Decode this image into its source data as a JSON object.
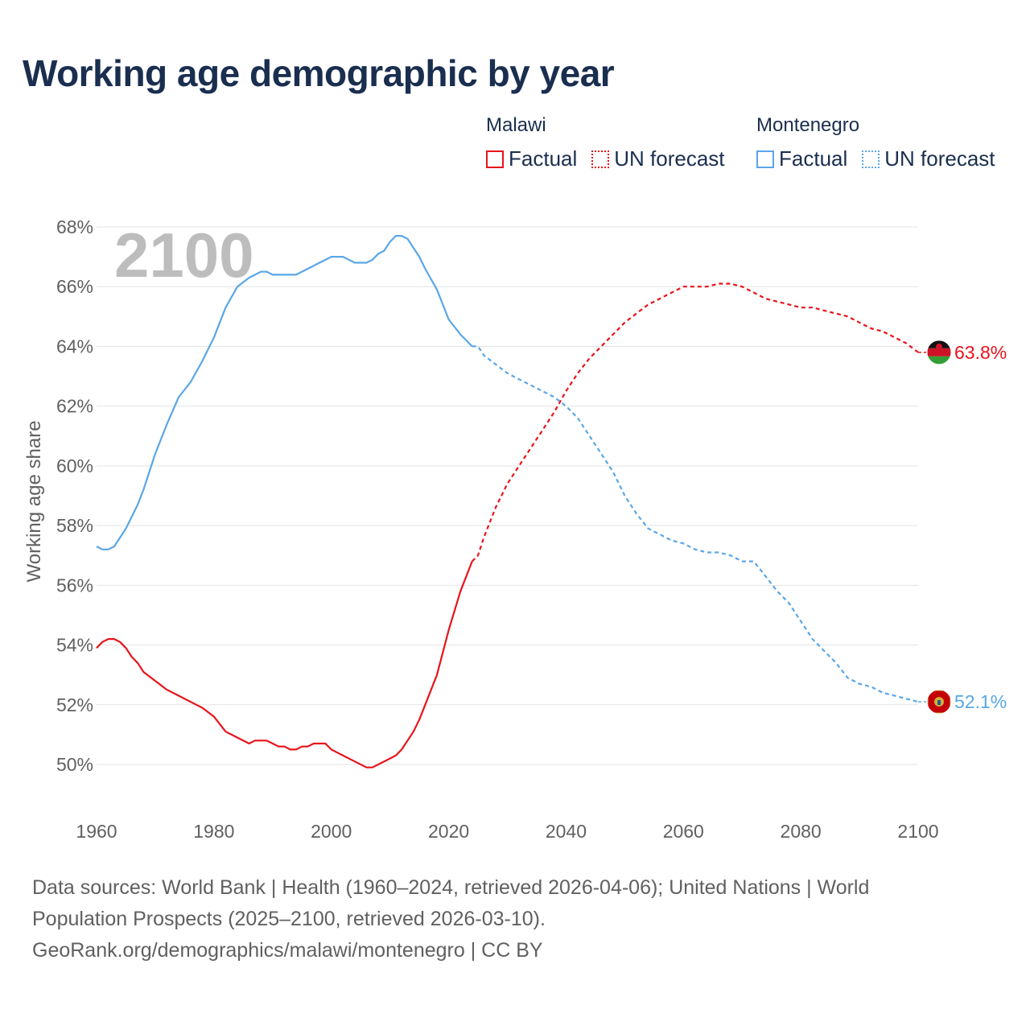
{
  "title": "Working age demographic by year",
  "legend": {
    "groups": [
      {
        "name": "Malawi",
        "factual_label": "Factual",
        "forecast_label": "UN forecast",
        "color": "#e8141b"
      },
      {
        "name": "Montenegro",
        "factual_label": "Factual",
        "forecast_label": "UN forecast",
        "color": "#5aa6e6"
      }
    ]
  },
  "source": {
    "line1": "Data sources: World Bank | Health (1960–2024, retrieved 2026-04-06); United Nations | World",
    "line2": "Population Prospects (2025–2100, retrieved 2026-03-10).",
    "line3": "GeoRank.org/demographics/malawi/montenegro | CC BY"
  },
  "chart_data": {
    "type": "line",
    "title": "Working age demographic by year",
    "xlabel": "",
    "ylabel": "Working age share",
    "xlim": [
      1960,
      2100
    ],
    "ylim": [
      49,
      68
    ],
    "x_ticks": [
      1960,
      1980,
      2000,
      2020,
      2040,
      2060,
      2080,
      2100
    ],
    "x_tick_labels": [
      "1960",
      "1980",
      "2000",
      "2020",
      "2040",
      "2060",
      "2080",
      "2100"
    ],
    "y_ticks": [
      50,
      52,
      54,
      56,
      58,
      60,
      62,
      64,
      66,
      68
    ],
    "y_tick_labels": [
      "50%",
      "52%",
      "54%",
      "56%",
      "58%",
      "60%",
      "62%",
      "64%",
      "66%",
      "68%"
    ],
    "grid": true,
    "year_watermark": "2100",
    "forecast_start": 2024,
    "series": [
      {
        "name": "Malawi",
        "color": "#e8141b",
        "end_label": "63.8%",
        "x": [
          1960,
          1961,
          1962,
          1963,
          1964,
          1965,
          1966,
          1967,
          1968,
          1970,
          1972,
          1974,
          1976,
          1977,
          1978,
          1980,
          1982,
          1984,
          1986,
          1987,
          1988,
          1989,
          1990,
          1991,
          1992,
          1993,
          1994,
          1995,
          1996,
          1997,
          1998,
          1999,
          2000,
          2001,
          2002,
          2004,
          2006,
          2007,
          2008,
          2010,
          2011,
          2012,
          2013,
          2014,
          2015,
          2016,
          2018,
          2020,
          2022,
          2024,
          2025,
          2026,
          2028,
          2030,
          2032,
          2034,
          2036,
          2038,
          2040,
          2042,
          2044,
          2046,
          2048,
          2050,
          2052,
          2054,
          2056,
          2058,
          2060,
          2062,
          2064,
          2066,
          2068,
          2070,
          2072,
          2074,
          2076,
          2078,
          2080,
          2082,
          2084,
          2086,
          2088,
          2090,
          2092,
          2094,
          2096,
          2098,
          2100
        ],
        "values": [
          53.9,
          54.1,
          54.2,
          54.2,
          54.1,
          53.9,
          53.6,
          53.4,
          53.1,
          52.8,
          52.5,
          52.3,
          52.1,
          52.0,
          51.9,
          51.6,
          51.1,
          50.9,
          50.7,
          50.8,
          50.8,
          50.8,
          50.7,
          50.6,
          50.6,
          50.5,
          50.5,
          50.6,
          50.6,
          50.7,
          50.7,
          50.7,
          50.5,
          50.4,
          50.3,
          50.1,
          49.9,
          49.9,
          50.0,
          50.2,
          50.3,
          50.5,
          50.8,
          51.1,
          51.5,
          52.0,
          53.0,
          54.5,
          55.8,
          56.8,
          57.0,
          57.6,
          58.6,
          59.4,
          60.0,
          60.6,
          61.2,
          61.8,
          62.5,
          63.1,
          63.6,
          64.0,
          64.4,
          64.8,
          65.1,
          65.4,
          65.6,
          65.8,
          66.0,
          66.0,
          66.0,
          66.1,
          66.1,
          66.0,
          65.8,
          65.6,
          65.5,
          65.4,
          65.3,
          65.3,
          65.2,
          65.1,
          65.0,
          64.8,
          64.6,
          64.5,
          64.3,
          64.1,
          63.8
        ]
      },
      {
        "name": "Montenegro",
        "color": "#5aa6e6",
        "end_label": "52.1%",
        "x": [
          1960,
          1961,
          1962,
          1963,
          1964,
          1965,
          1966,
          1967,
          1968,
          1970,
          1972,
          1974,
          1976,
          1978,
          1980,
          1982,
          1984,
          1986,
          1987,
          1988,
          1989,
          1990,
          1992,
          1994,
          1996,
          1998,
          2000,
          2001,
          2002,
          2003,
          2004,
          2005,
          2006,
          2007,
          2008,
          2009,
          2010,
          2011,
          2012,
          2013,
          2014,
          2015,
          2016,
          2018,
          2020,
          2022,
          2024,
          2025,
          2026,
          2028,
          2030,
          2032,
          2034,
          2036,
          2038,
          2040,
          2042,
          2044,
          2046,
          2048,
          2050,
          2052,
          2054,
          2056,
          2058,
          2060,
          2062,
          2064,
          2066,
          2068,
          2070,
          2072,
          2074,
          2076,
          2078,
          2080,
          2082,
          2084,
          2086,
          2088,
          2090,
          2092,
          2094,
          2096,
          2098,
          2100
        ],
        "values": [
          57.3,
          57.2,
          57.2,
          57.3,
          57.6,
          57.9,
          58.3,
          58.7,
          59.2,
          60.4,
          61.4,
          62.3,
          62.8,
          63.5,
          64.3,
          65.3,
          66.0,
          66.3,
          66.4,
          66.5,
          66.5,
          66.4,
          66.4,
          66.4,
          66.6,
          66.8,
          67.0,
          67.0,
          67.0,
          66.9,
          66.8,
          66.8,
          66.8,
          66.9,
          67.1,
          67.2,
          67.5,
          67.7,
          67.7,
          67.6,
          67.3,
          67.0,
          66.6,
          65.9,
          64.9,
          64.4,
          64.0,
          64.0,
          63.7,
          63.4,
          63.1,
          62.9,
          62.7,
          62.5,
          62.3,
          62.0,
          61.6,
          61.0,
          60.4,
          59.8,
          59.0,
          58.4,
          57.9,
          57.7,
          57.5,
          57.4,
          57.2,
          57.1,
          57.1,
          57.0,
          56.8,
          56.8,
          56.3,
          55.8,
          55.4,
          54.8,
          54.2,
          53.8,
          53.4,
          52.9,
          52.7,
          52.6,
          52.4,
          52.3,
          52.2,
          52.1
        ]
      }
    ]
  }
}
